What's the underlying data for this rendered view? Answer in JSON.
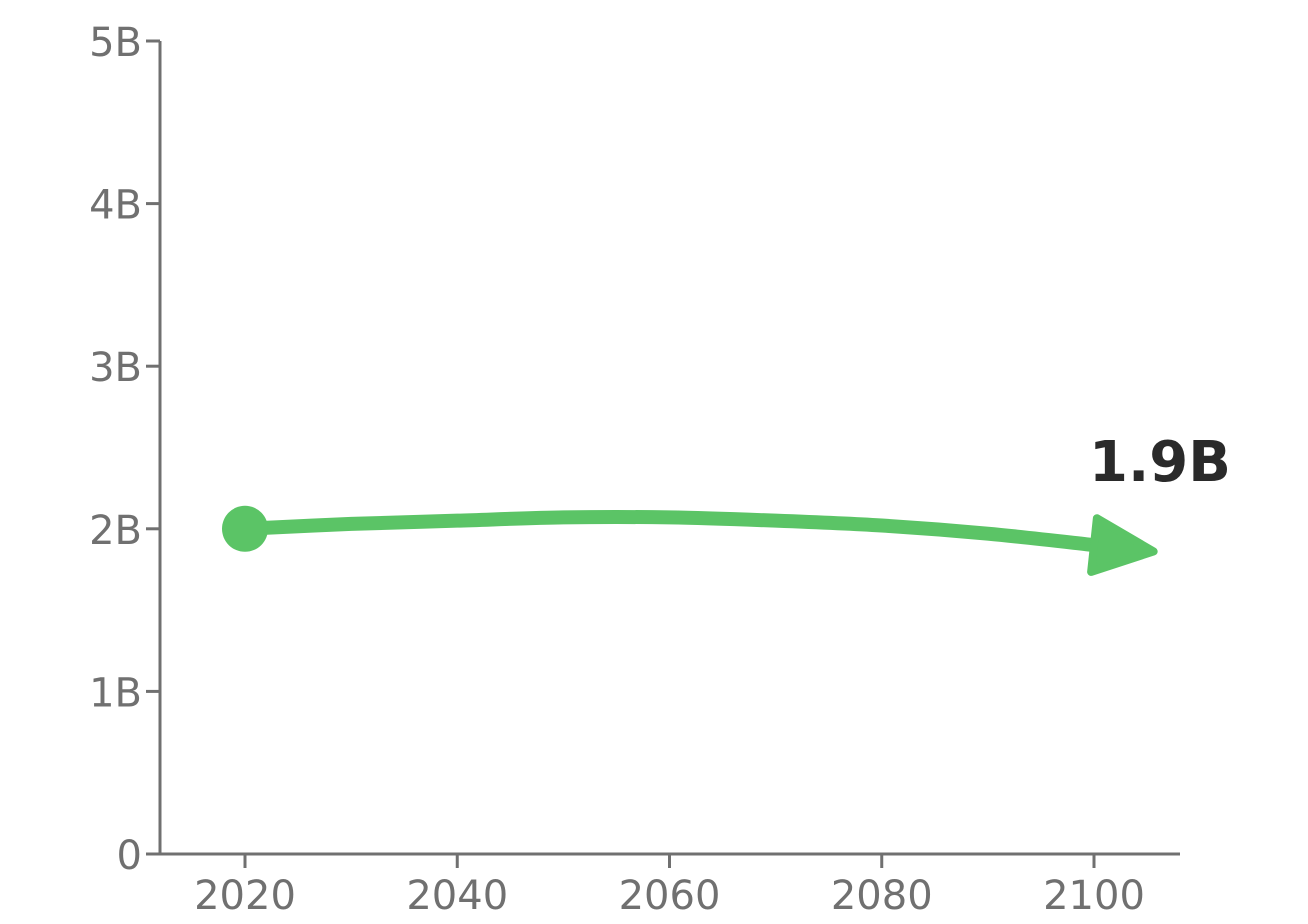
{
  "chart_data": {
    "type": "line",
    "title": "",
    "xlabel": "",
    "ylabel": "",
    "x_ticks": [
      2020,
      2040,
      2060,
      2080,
      2100
    ],
    "y_ticks": [
      0,
      1,
      2,
      3,
      4,
      5
    ],
    "y_tick_labels": [
      "0",
      "1B",
      "2B",
      "3B",
      "4B",
      "5B"
    ],
    "xlim": [
      2012,
      2108
    ],
    "ylim": [
      0,
      5
    ],
    "grid": false,
    "series": [
      {
        "color": "#5bc466",
        "x": [
          2020,
          2030,
          2040,
          2050,
          2060,
          2070,
          2080,
          2090,
          2100
        ],
        "values": [
          2.0,
          2.03,
          2.05,
          2.07,
          2.07,
          2.05,
          2.02,
          1.97,
          1.9
        ],
        "end_label": "1.9B"
      }
    ],
    "colors": {
      "axis": "#707070",
      "series": "#5bc466",
      "end_label": "#2a2a2a"
    }
  }
}
